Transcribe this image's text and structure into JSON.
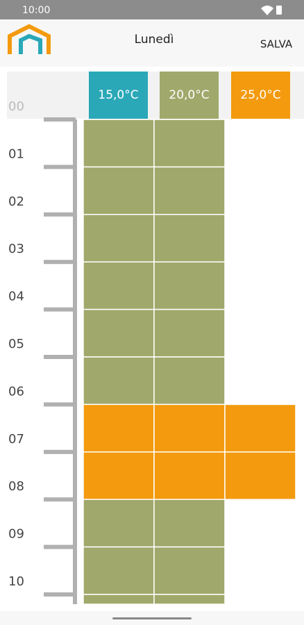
{
  "status_bar": {
    "time": "10:00"
  },
  "app_bar": {
    "title": "Lunedì",
    "action": "SALVA"
  },
  "setpoints": [
    {
      "label": "15,0°C",
      "color": "#2aa8b8"
    },
    {
      "label": "20,0°C",
      "color": "#a1a86b"
    },
    {
      "label": "25,0°C",
      "color": "#f39a0e"
    }
  ],
  "hours": [
    "00",
    "01",
    "02",
    "03",
    "04",
    "05",
    "06",
    "07",
    "08",
    "09",
    "10"
  ],
  "schedule": [
    1,
    1,
    1,
    1,
    1,
    1,
    2,
    2,
    1,
    1,
    1
  ]
}
